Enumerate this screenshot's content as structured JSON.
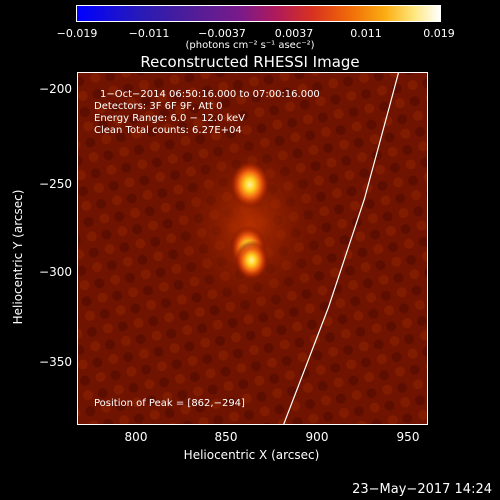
{
  "colorbar": {
    "ticks": [
      "−0.019",
      "−0.011",
      "−0.0037",
      "0.0037",
      "0.011",
      "0.019"
    ],
    "units": "(photons cm⁻² s⁻¹ asec⁻²)"
  },
  "plot": {
    "title": "Reconstructed RHESSI Image",
    "xlabel": "Heliocentric X (arcsec)",
    "ylabel": "Heliocentric Y (arcsec)",
    "xticks": [
      "800",
      "850",
      "900",
      "950"
    ],
    "yticks": [
      "−200",
      "−250",
      "−300",
      "−350"
    ],
    "info": {
      "time_range": "1−Oct−2014 06:50:16.000 to 07:00:16.000",
      "detectors": "Detectors: 3F 6F 9F, Att 0",
      "energy": "Energy Range: 6.0 − 12.0 keV",
      "clean": "Clean    Total counts: 6.27E+04"
    },
    "peak": "Position of Peak = [862,−294]"
  },
  "chart_data": {
    "type": "heatmap",
    "title": "Reconstructed RHESSI Image",
    "xlabel": "Heliocentric X (arcsec)",
    "ylabel": "Heliocentric Y (arcsec)",
    "xlim": [
      765,
      960
    ],
    "ylim": [
      -385,
      -190
    ],
    "color_range": [
      -0.019,
      0.019
    ],
    "sources": [
      {
        "x": 861,
        "y": -252
      },
      {
        "x": 860,
        "y": -287
      },
      {
        "x": 862,
        "y": -294
      }
    ],
    "peak": [
      862,
      -294
    ]
  },
  "timestamp": "23−May−2017 14:24"
}
